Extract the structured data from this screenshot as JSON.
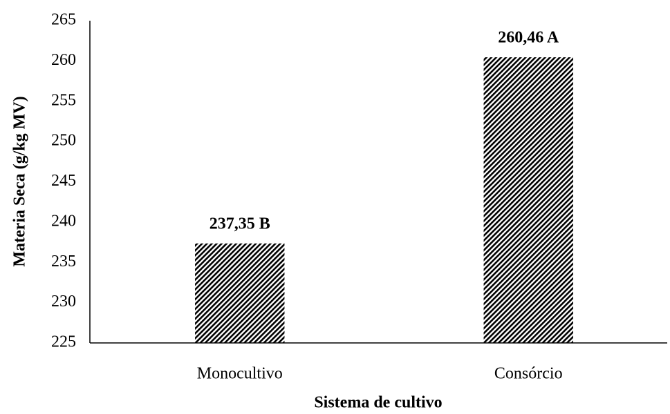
{
  "chart_data": {
    "type": "bar",
    "x_label": "Sistema de cultivo",
    "y_label": "Materia Seca (g/kg MV)",
    "categories": [
      "Monocultivo",
      "Consórcio"
    ],
    "values": [
      237.35,
      260.46
    ],
    "value_labels": [
      "237,35 B",
      "260,46 A"
    ],
    "color": "#000000",
    "ylim": [
      225,
      265
    ],
    "yticks": [
      225,
      230,
      235,
      240,
      245,
      250,
      255,
      260,
      265
    ],
    "grid": false
  }
}
